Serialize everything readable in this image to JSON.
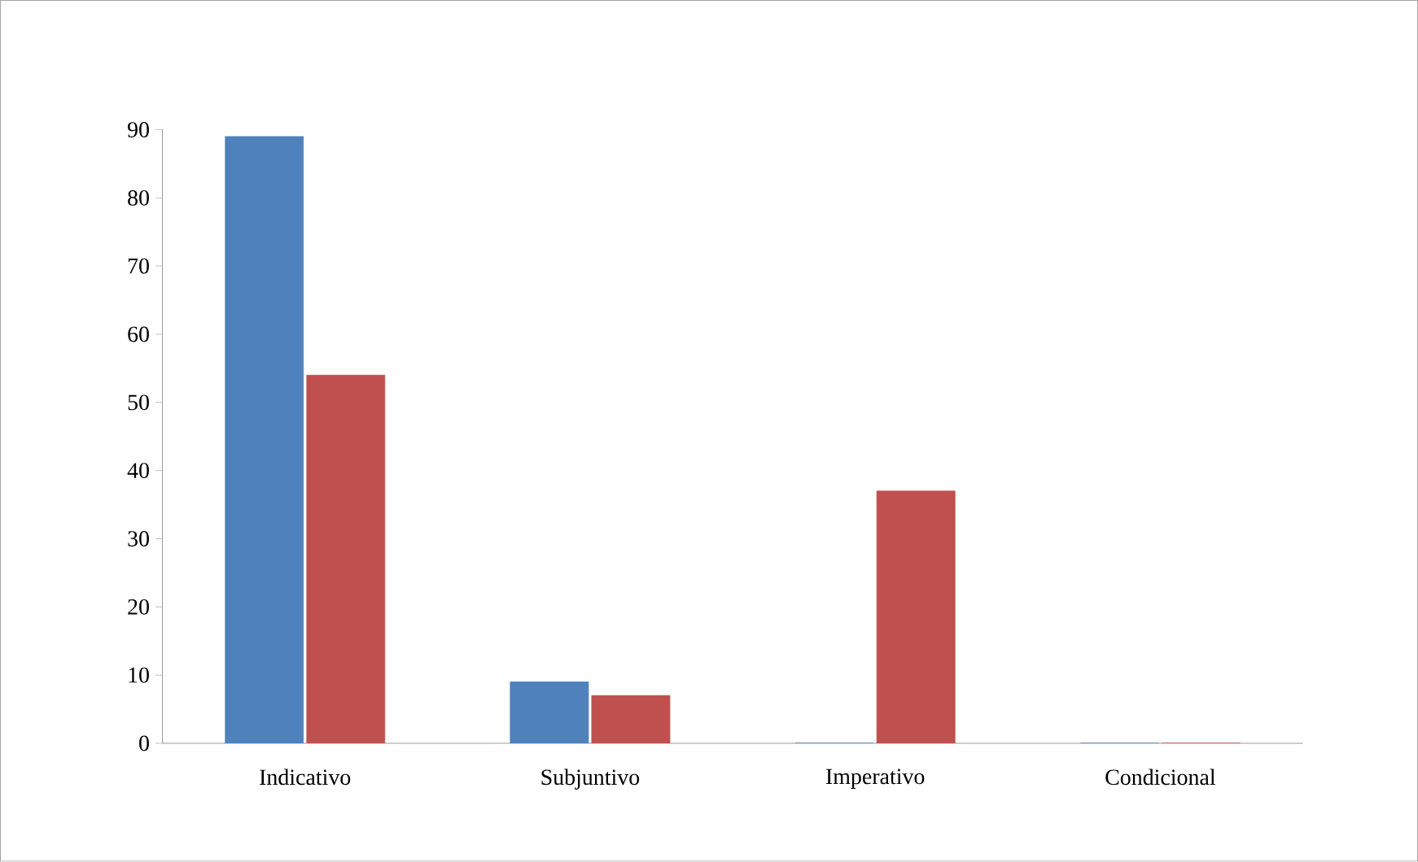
{
  "chart_data": {
    "type": "bar",
    "categories": [
      "Indicativo",
      "Subjuntivo",
      "Imperativo",
      "Condicional"
    ],
    "series": [
      {
        "color": "#4f81bd",
        "values": [
          89,
          9,
          0,
          0
        ]
      },
      {
        "color": "#c0504d",
        "values": [
          54,
          7,
          37,
          0
        ]
      }
    ],
    "ylim": [
      0,
      90
    ],
    "yticks": [
      0,
      10,
      20,
      30,
      40,
      50,
      60,
      70,
      80,
      90
    ],
    "grid": false
  }
}
